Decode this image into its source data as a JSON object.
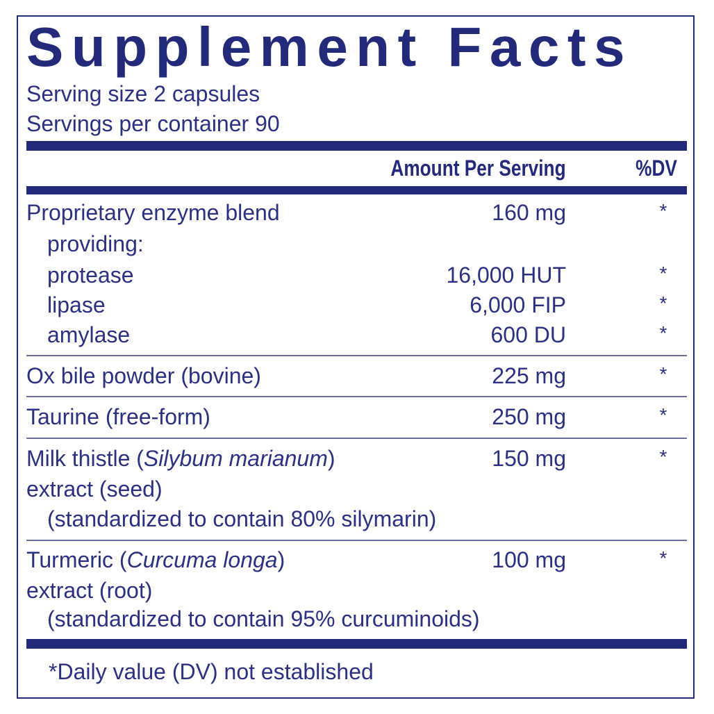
{
  "title": "Supplement Facts",
  "serving_size": "Serving size  2 capsules",
  "servings_per_container": "Servings per container  90",
  "header": {
    "amount": "Amount Per Serving",
    "dv": "%DV"
  },
  "rows": [
    {
      "name": "Proprietary enzyme blend",
      "sub": "providing:",
      "amount": "160 mg",
      "dv": "*"
    },
    {
      "name": "protease",
      "amount": "16,000 HUT",
      "dv": "*"
    },
    {
      "name": "lipase",
      "amount": "6,000 FIP",
      "dv": "*"
    },
    {
      "name": "amylase",
      "amount": "600 DU",
      "dv": "*"
    },
    {
      "name": "Ox bile powder (bovine)",
      "amount": "225 mg",
      "dv": "*"
    },
    {
      "name": "Taurine (free-form)",
      "amount": "250 mg",
      "dv": "*"
    },
    {
      "name_pre": "Milk thistle (",
      "name_italic": "Silybum marianum",
      "name_post": ")",
      "line2": "extract (seed)",
      "line3": "(standardized to contain 80% silymarin)",
      "amount": "150 mg",
      "dv": "*"
    },
    {
      "name_pre": "Turmeric (",
      "name_italic": "Curcuma longa",
      "name_post": ")",
      "line2": "extract (root)",
      "line3": "(standardized to contain 95% curcuminoids)",
      "amount": "100 mg",
      "dv": "*"
    }
  ],
  "footnote": "*Daily value (DV) not established",
  "colors": {
    "primary": "#232a7a",
    "text": "#2b3080"
  }
}
